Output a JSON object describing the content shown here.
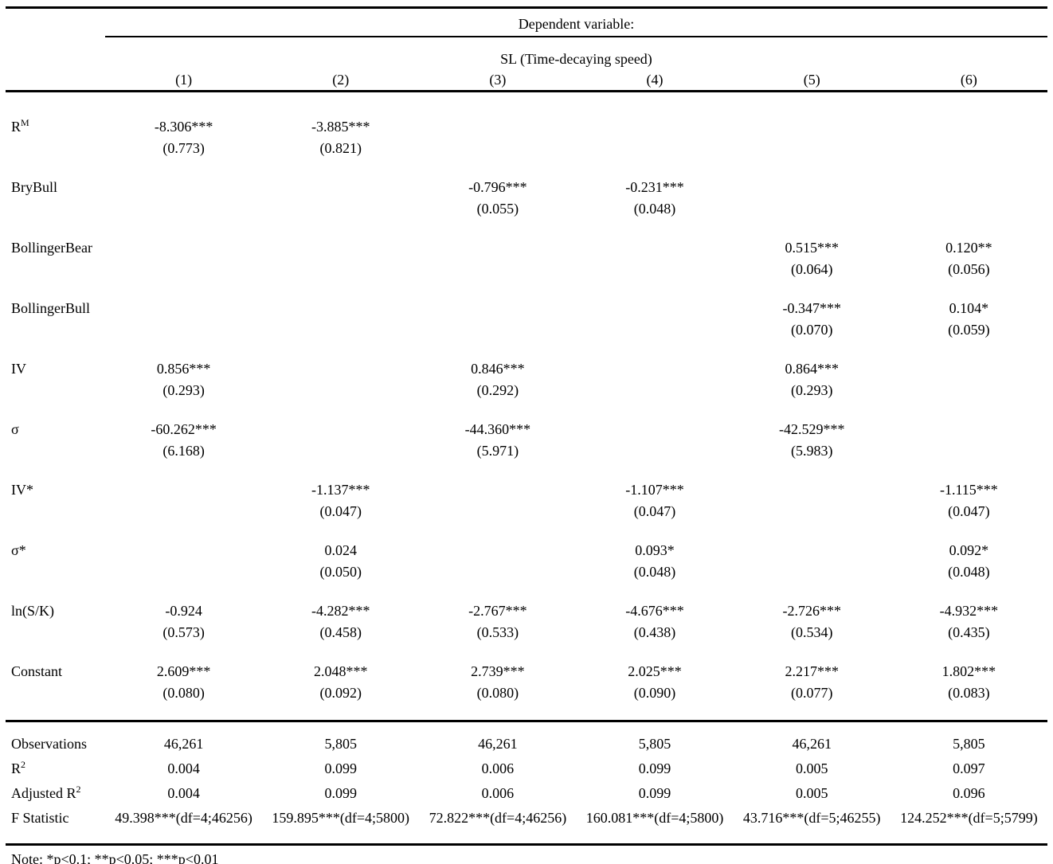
{
  "header": {
    "dependent_variable_label": "Dependent variable:",
    "dv_name": "SL (Time-decaying speed)"
  },
  "columns": [
    "(1)",
    "(2)",
    "(3)",
    "(4)",
    "(5)",
    "(6)"
  ],
  "coefficient_rows": [
    {
      "label": "R",
      "label_sup": "M",
      "cells": [
        {
          "est": "-8.306***",
          "se": "(0.773)"
        },
        {
          "est": "-3.885***",
          "se": "(0.821)"
        },
        null,
        null,
        null,
        null
      ]
    },
    {
      "label": "BryBull",
      "cells": [
        null,
        null,
        {
          "est": "-0.796***",
          "se": "(0.055)"
        },
        {
          "est": "-0.231***",
          "se": "(0.048)"
        },
        null,
        null
      ]
    },
    {
      "label": "BollingerBear",
      "cells": [
        null,
        null,
        null,
        null,
        {
          "est": "0.515***",
          "se": "(0.064)"
        },
        {
          "est": "0.120**",
          "se": "(0.056)"
        }
      ]
    },
    {
      "label": "BollingerBull",
      "cells": [
        null,
        null,
        null,
        null,
        {
          "est": "-0.347***",
          "se": "(0.070)"
        },
        {
          "est": "0.104*",
          "se": "(0.059)"
        }
      ]
    },
    {
      "label": "IV",
      "cells": [
        {
          "est": "0.856***",
          "se": "(0.293)"
        },
        null,
        {
          "est": "0.846***",
          "se": "(0.292)"
        },
        null,
        {
          "est": "0.864***",
          "se": "(0.293)"
        },
        null
      ]
    },
    {
      "label": "σ",
      "cells": [
        {
          "est": "-60.262***",
          "se": "(6.168)"
        },
        null,
        {
          "est": "-44.360***",
          "se": "(5.971)"
        },
        null,
        {
          "est": "-42.529***",
          "se": "(5.983)"
        },
        null
      ]
    },
    {
      "label": "IV*",
      "cells": [
        null,
        {
          "est": "-1.137***",
          "se": "(0.047)"
        },
        null,
        {
          "est": "-1.107***",
          "se": "(0.047)"
        },
        null,
        {
          "est": "-1.115***",
          "se": "(0.047)"
        }
      ]
    },
    {
      "label": "σ*",
      "cells": [
        null,
        {
          "est": "0.024",
          "se": "(0.050)"
        },
        null,
        {
          "est": "0.093*",
          "se": "(0.048)"
        },
        null,
        {
          "est": "0.092*",
          "se": "(0.048)"
        }
      ]
    },
    {
      "label": "ln(S/K)",
      "cells": [
        {
          "est": "-0.924",
          "se": "(0.573)"
        },
        {
          "est": "-4.282***",
          "se": "(0.458)"
        },
        {
          "est": "-2.767***",
          "se": "(0.533)"
        },
        {
          "est": "-4.676***",
          "se": "(0.438)"
        },
        {
          "est": "-2.726***",
          "se": "(0.534)"
        },
        {
          "est": "-4.932***",
          "se": "(0.435)"
        }
      ]
    },
    {
      "label": "Constant",
      "cells": [
        {
          "est": "2.609***",
          "se": "(0.080)"
        },
        {
          "est": "2.048***",
          "se": "(0.092)"
        },
        {
          "est": "2.739***",
          "se": "(0.080)"
        },
        {
          "est": "2.025***",
          "se": "(0.090)"
        },
        {
          "est": "2.217***",
          "se": "(0.077)"
        },
        {
          "est": "1.802***",
          "se": "(0.083)"
        }
      ]
    }
  ],
  "stats_rows": [
    {
      "label": "Observations",
      "values": [
        "46,261",
        "5,805",
        "46,261",
        "5,805",
        "46,261",
        "5,805"
      ]
    },
    {
      "label": "R",
      "label_sup": "2",
      "values": [
        "0.004",
        "0.099",
        "0.006",
        "0.099",
        "0.005",
        "0.097"
      ]
    },
    {
      "label": "Adjusted R",
      "label_sup": "2",
      "values": [
        "0.004",
        "0.099",
        "0.006",
        "0.099",
        "0.005",
        "0.096"
      ]
    },
    {
      "label": "F Statistic",
      "values": [
        "49.398***(df=4;46256)",
        "159.895***(df=4;5800)",
        "72.822***(df=4;46256)",
        "160.081***(df=4;5800)",
        "43.716***(df=5;46255)",
        "124.252***(df=5;5799)"
      ]
    }
  ],
  "note": "Note: *p<0.1; **p<0.05; ***p<0.01"
}
